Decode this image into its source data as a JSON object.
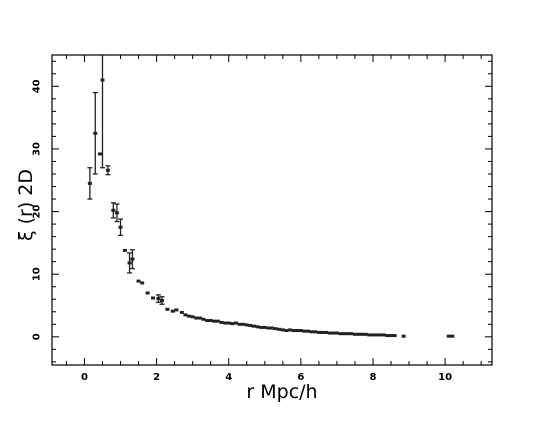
{
  "chart_data": {
    "type": "scatter",
    "title": "",
    "xlabel": "r   Mpc/h",
    "ylabel": "ξ (r)  2D",
    "xlim": [
      -0.9,
      11.3
    ],
    "ylim": [
      -4.5,
      45
    ],
    "xticks": [
      0,
      2,
      4,
      6,
      8,
      10
    ],
    "yticks": [
      0,
      10,
      20,
      30,
      40
    ],
    "xtick_labels": [
      "0",
      "2",
      "4",
      "6",
      "8",
      "10"
    ],
    "ytick_labels": [
      "0",
      "10",
      "20",
      "30",
      "40"
    ],
    "grid": false,
    "legend": "none",
    "marker_color": "#222222",
    "series": [
      {
        "x": [
          0.15,
          0.3,
          0.43,
          0.5,
          0.65,
          0.8,
          0.9,
          1.0,
          1.12,
          1.25,
          1.33,
          1.5,
          1.6,
          1.75,
          1.9,
          2.05,
          2.15,
          2.3,
          2.45,
          2.55,
          2.7,
          2.8,
          2.9,
          3.0,
          3.1,
          3.2,
          3.3,
          3.4,
          3.5,
          3.6,
          3.7,
          3.8,
          3.9,
          4.0,
          4.1,
          4.2,
          4.3,
          4.4,
          4.5,
          4.6,
          4.7,
          4.8,
          4.9,
          5.0,
          5.1,
          5.2,
          5.3,
          5.4,
          5.5,
          5.6,
          5.7,
          5.8,
          5.9,
          6.0,
          6.1,
          6.2,
          6.3,
          6.4,
          6.5,
          6.6,
          6.7,
          6.8,
          6.9,
          7.0,
          7.1,
          7.2,
          7.3,
          7.4,
          7.5,
          7.6,
          7.7,
          7.8,
          7.9,
          8.0,
          8.1,
          8.2,
          8.3,
          8.4,
          8.5,
          8.6,
          8.85,
          10.1,
          10.2
        ],
        "y": [
          24.5,
          32.5,
          29.2,
          41,
          26.6,
          20.2,
          19.8,
          17.5,
          13.8,
          11.8,
          12.4,
          8.9,
          8.6,
          7.0,
          6.2,
          6.1,
          5.8,
          4.4,
          4.1,
          4.3,
          3.9,
          3.5,
          3.3,
          3.2,
          3.0,
          3.0,
          2.8,
          2.6,
          2.6,
          2.5,
          2.5,
          2.3,
          2.2,
          2.2,
          2.1,
          2.2,
          2.0,
          2.0,
          1.9,
          1.8,
          1.7,
          1.6,
          1.5,
          1.5,
          1.4,
          1.4,
          1.3,
          1.2,
          1.1,
          1.0,
          1.1,
          1.0,
          1.0,
          1.0,
          0.9,
          0.9,
          0.8,
          0.8,
          0.7,
          0.7,
          0.7,
          0.6,
          0.6,
          0.6,
          0.5,
          0.5,
          0.5,
          0.5,
          0.4,
          0.4,
          0.4,
          0.4,
          0.3,
          0.3,
          0.3,
          0.3,
          0.3,
          0.2,
          0.2,
          0.2,
          0.1,
          0.1,
          0.1
        ],
        "yerr": [
          2.5,
          6.5,
          0,
          14,
          0.7,
          1.2,
          1.4,
          1.3,
          0,
          1.6,
          1.5,
          0,
          0,
          0,
          0,
          0.6,
          0.6,
          0,
          0,
          0,
          0,
          0,
          0,
          0,
          0,
          0,
          0,
          0,
          0,
          0,
          0,
          0,
          0,
          0,
          0,
          0,
          0,
          0,
          0,
          0,
          0,
          0,
          0,
          0,
          0,
          0,
          0,
          0,
          0,
          0,
          0,
          0,
          0,
          0,
          0,
          0,
          0,
          0,
          0,
          0,
          0,
          0,
          0,
          0,
          0,
          0,
          0,
          0,
          0,
          0,
          0,
          0,
          0,
          0,
          0,
          0,
          0,
          0,
          0,
          0,
          0,
          0,
          0
        ]
      }
    ]
  }
}
